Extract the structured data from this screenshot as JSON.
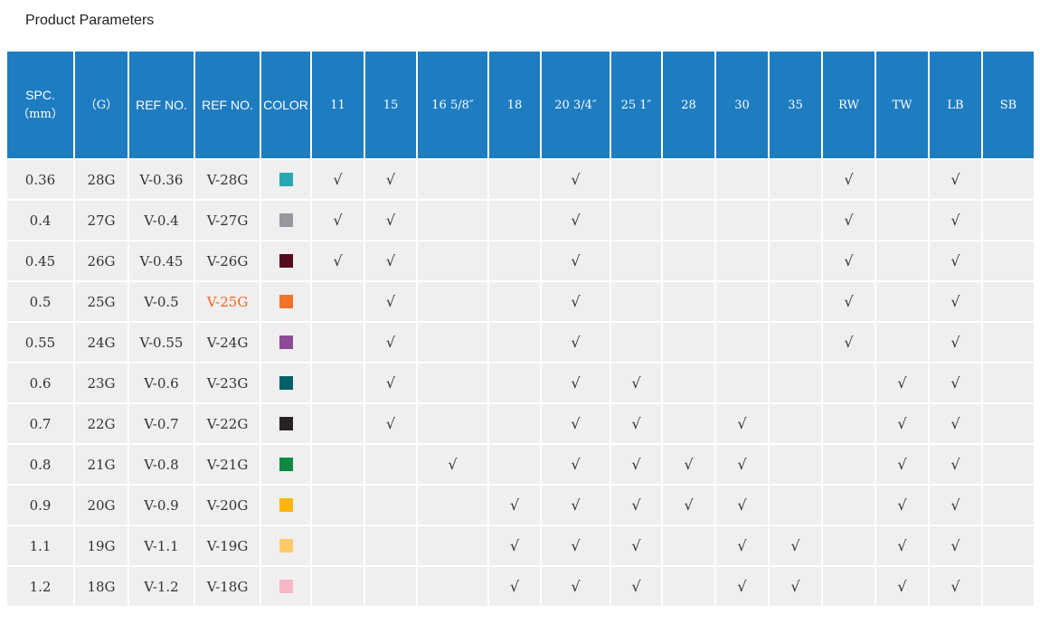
{
  "page": {
    "title": "Product Parameters"
  },
  "colors": {
    "header_bg": "#1E7CC1",
    "row_bg": "#F0EFEF",
    "body_text": "#333333",
    "highlight_text": "#F5661F"
  },
  "table": {
    "check_mark": "√",
    "columns": [
      {
        "id": "spc",
        "label": "SPC.",
        "sublabel": "（mm）",
        "style": "sans"
      },
      {
        "id": "g",
        "label": "（G）",
        "style": "mono"
      },
      {
        "id": "ref1",
        "label": "REF NO.",
        "style": "sans"
      },
      {
        "id": "ref2",
        "label": "REF NO.",
        "style": "sans"
      },
      {
        "id": "color",
        "label": "COLOR",
        "style": "sans"
      },
      {
        "id": "c11",
        "label": "11",
        "style": "mono"
      },
      {
        "id": "c15",
        "label": "15",
        "style": "mono"
      },
      {
        "id": "c16",
        "label": "16 5/8″",
        "style": "mono"
      },
      {
        "id": "c18",
        "label": "18",
        "style": "mono"
      },
      {
        "id": "c20",
        "label": "20 3/4″",
        "style": "mono"
      },
      {
        "id": "c25",
        "label": "25 1″",
        "style": "mono"
      },
      {
        "id": "c28",
        "label": "28",
        "style": "mono"
      },
      {
        "id": "c30",
        "label": "30",
        "style": "mono"
      },
      {
        "id": "c35",
        "label": "35",
        "style": "mono"
      },
      {
        "id": "rw",
        "label": "RW",
        "style": "mono"
      },
      {
        "id": "tw",
        "label": "TW",
        "style": "mono"
      },
      {
        "id": "lb",
        "label": "LB",
        "style": "mono"
      },
      {
        "id": "sb",
        "label": "SB",
        "style": "mono"
      }
    ],
    "rows": [
      {
        "spc": "0.36",
        "g": "28G",
        "ref1": "V-0.36",
        "ref2": "V-28G",
        "swatch": "#29A8B3",
        "checks": [
          "c11",
          "c15",
          "c20",
          "rw",
          "lb"
        ]
      },
      {
        "spc": "0.4",
        "g": "27G",
        "ref1": "V-0.4",
        "ref2": "V-27G",
        "swatch": "#97979D",
        "checks": [
          "c11",
          "c15",
          "c20",
          "rw",
          "lb"
        ]
      },
      {
        "spc": "0.45",
        "g": "26G",
        "ref1": "V-0.45",
        "ref2": "V-26G",
        "swatch": "#570A1E",
        "checks": [
          "c11",
          "c15",
          "c20",
          "rw",
          "lb"
        ]
      },
      {
        "spc": "0.5",
        "g": "25G",
        "ref1": "V-0.5",
        "ref2": "V-25G",
        "ref2_color": "#F5661F",
        "swatch": "#F27327",
        "checks": [
          "c15",
          "c20",
          "rw",
          "lb"
        ]
      },
      {
        "spc": "0.55",
        "g": "24G",
        "ref1": "V-0.55",
        "ref2": "V-24G",
        "swatch": "#8E4A96",
        "checks": [
          "c15",
          "c20",
          "rw",
          "lb"
        ]
      },
      {
        "spc": "0.6",
        "g": "23G",
        "ref1": "V-0.6",
        "ref2": "V-23G",
        "swatch": "#02606C",
        "checks": [
          "c15",
          "c20",
          "c25",
          "tw",
          "lb"
        ]
      },
      {
        "spc": "0.7",
        "g": "22G",
        "ref1": "V-0.7",
        "ref2": "V-22G",
        "swatch": "#272226",
        "checks": [
          "c15",
          "c20",
          "c25",
          "c30",
          "tw",
          "lb"
        ]
      },
      {
        "spc": "0.8",
        "g": "21G",
        "ref1": "V-0.8",
        "ref2": "V-21G",
        "swatch": "#0B8A42",
        "checks": [
          "c16",
          "c20",
          "c25",
          "c28",
          "c30",
          "tw",
          "lb"
        ]
      },
      {
        "spc": "0.9",
        "g": "20G",
        "ref1": "V-0.9",
        "ref2": "V-20G",
        "swatch": "#FBB50D",
        "checks": [
          "c18",
          "c20",
          "c25",
          "c28",
          "c30",
          "tw",
          "lb"
        ]
      },
      {
        "spc": "1.1",
        "g": "19G",
        "ref1": "V-1.1",
        "ref2": "V-19G",
        "swatch": "#FDCA6B",
        "checks": [
          "c18",
          "c20",
          "c25",
          "c30",
          "c35",
          "tw",
          "lb"
        ]
      },
      {
        "spc": "1.2",
        "g": "18G",
        "ref1": "V-1.2",
        "ref2": "V-18G",
        "swatch": "#F8B7C5",
        "checks": [
          "c18",
          "c20",
          "c25",
          "c30",
          "c35",
          "tw",
          "lb"
        ]
      }
    ]
  }
}
